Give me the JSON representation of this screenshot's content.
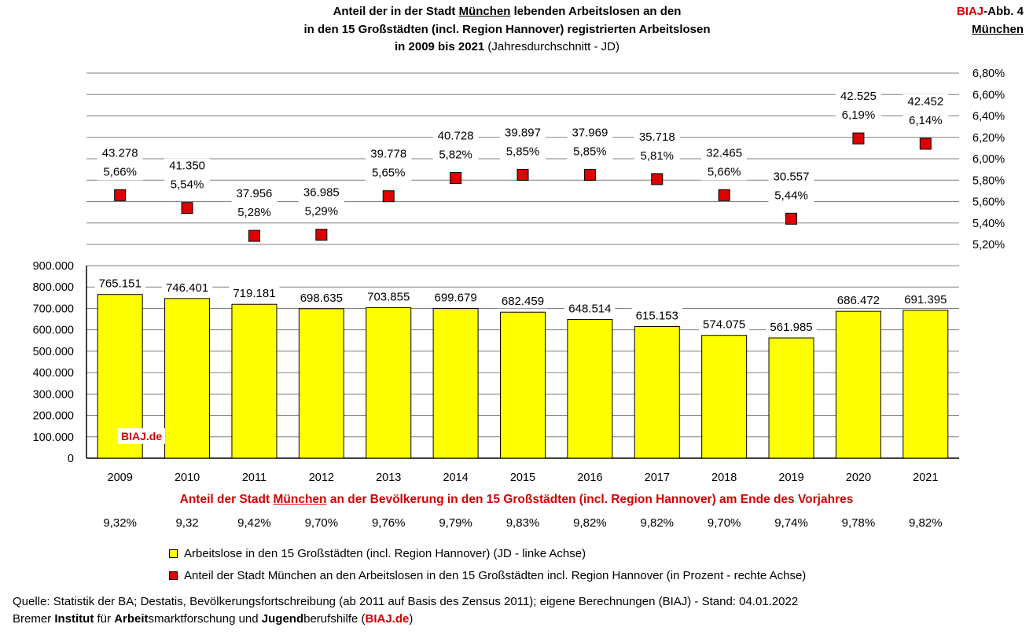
{
  "title": {
    "line1_pre": "Anteil der in der Stadt ",
    "line1_city": "München",
    "line1_post": " lebenden Arbeitslosen an den",
    "line2": "in den 15 Großstädten (incl. Region Hannover) registrierten Arbeitslosen",
    "line3_bold": "in 2009 bis 2021",
    "line3_rest": " (Jahresdurchschnitt - JD)"
  },
  "corner": {
    "brand": "BIAJ",
    "abb": "-Abb. 4",
    "city": "München"
  },
  "watermark": "BIAJ.de",
  "colors": {
    "bar": "#ffff00",
    "marker": "#e00000",
    "accent": "#d40000",
    "grid": "#808080"
  },
  "chart_data": {
    "type": "bar",
    "categories": [
      "2009",
      "2010",
      "2011",
      "2012",
      "2013",
      "2014",
      "2015",
      "2016",
      "2017",
      "2018",
      "2019",
      "2020",
      "2021"
    ],
    "series": [
      {
        "type": "bar",
        "axis": "left",
        "values": [
          765151,
          746401,
          719181,
          698635,
          703855,
          699679,
          682459,
          648514,
          615153,
          574075,
          561985,
          686472,
          691395
        ],
        "value_labels": [
          "765.151",
          "746.401",
          "719.181",
          "698.635",
          "703.855",
          "699.679",
          "682.459",
          "648.514",
          "615.153",
          "574.075",
          "561.985",
          "686.472",
          "691.395"
        ]
      },
      {
        "type": "scatter",
        "axis": "right",
        "values": [
          5.66,
          5.54,
          5.28,
          5.29,
          5.65,
          5.82,
          5.85,
          5.85,
          5.81,
          5.66,
          5.44,
          6.19,
          6.14
        ],
        "value_labels": [
          "5,66%",
          "5,54%",
          "5,28%",
          "5,29%",
          "5,65%",
          "5,82%",
          "5,85%",
          "5,85%",
          "5,81%",
          "5,66%",
          "5,44%",
          "6,19%",
          "6,14%"
        ],
        "counts": [
          "43.278",
          "41.350",
          "37.956",
          "36.985",
          "39.778",
          "40.728",
          "39.897",
          "37.969",
          "35.718",
          "32.465",
          "30.557",
          "42.525",
          "42.452"
        ]
      }
    ],
    "left_axis": {
      "ylim": [
        0,
        900000
      ],
      "step": 100000,
      "tick_labels": [
        "0",
        "100.000",
        "200.000",
        "300.000",
        "400.000",
        "500.000",
        "600.000",
        "700.000",
        "800.000",
        "900.000"
      ]
    },
    "right_axis": {
      "ylim": [
        5.2,
        6.8
      ],
      "step": 0.2,
      "tick_labels": [
        "5,20%",
        "5,40%",
        "5,60%",
        "5,80%",
        "6,00%",
        "6,20%",
        "6,40%",
        "6,60%",
        "6,80%"
      ]
    },
    "grid": true
  },
  "share": {
    "title_pre": "Anteil der Stadt ",
    "title_city": "München",
    "title_post": " an der Bevölkerung in den 15 Großstädten (incl. Region Hannover) am Ende des Vorjahres",
    "values": [
      "9,32%",
      "9,32",
      "9,42%",
      "9,70%",
      "9,76%",
      "9,79%",
      "9,83%",
      "9,82%",
      "9,82%",
      "9,70%",
      "9,74%",
      "9,78%",
      "9,82%"
    ]
  },
  "legend": {
    "bar_label": "Arbeitslose in den 15 Großstädten (incl. Region Hannover) (JD - linke Achse)",
    "marker_label": "Anteil der Stadt München an den Arbeitslosen in den 15 Großstädten incl. Region Hannover (in Prozent - rechte Achse)"
  },
  "footer": {
    "source": "Quelle: Statistik der BA; Destatis, Bevölkerungsfortschreibung (ab 2011 auf Basis des Zensus 2011); eigene Berechnungen (BIAJ) - Stand: 04.01.2022",
    "inst_1": "Bremer ",
    "inst_2": "Institut",
    "inst_3": " für ",
    "inst_4": "Arbeit",
    "inst_5": "smarktforschung und ",
    "inst_6": "Jugend",
    "inst_7": "berufshilfe (",
    "inst_8": "BIAJ.de",
    "inst_9": ")"
  }
}
